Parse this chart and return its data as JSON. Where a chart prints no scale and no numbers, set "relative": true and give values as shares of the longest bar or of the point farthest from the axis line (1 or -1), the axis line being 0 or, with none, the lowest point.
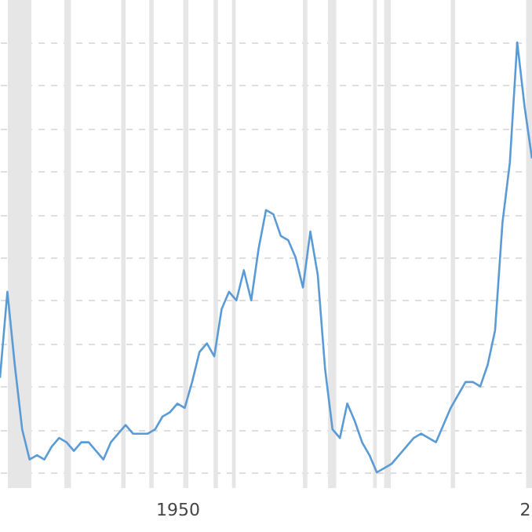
{
  "chart_data": {
    "type": "line",
    "relative": true,
    "grid": "y",
    "line_style": "solid",
    "marker": "none",
    "categories": [
      null,
      null,
      null,
      null,
      null,
      null,
      null,
      null,
      null,
      null,
      null,
      null,
      null,
      null,
      null,
      null,
      null,
      null,
      null,
      null,
      null,
      null,
      null,
      null,
      "1950",
      null,
      null,
      null,
      null,
      null,
      null,
      null,
      null,
      null,
      null,
      null,
      null,
      null,
      null,
      null,
      null,
      null,
      null,
      null,
      null,
      null,
      null,
      null,
      null,
      null,
      null,
      null,
      null,
      null,
      null,
      null,
      null,
      null,
      null,
      null,
      null,
      null,
      null,
      null,
      null,
      null,
      null,
      null,
      null,
      null,
      null,
      "2",
      null
    ],
    "series": [
      {
        "color": "#5b9bd5",
        "values": [
          0.22,
          0.42,
          0.25,
          0.1,
          0.03,
          0.04,
          0.03,
          0.06,
          0.08,
          0.07,
          0.05,
          0.07,
          0.07,
          0.05,
          0.03,
          0.07,
          0.09,
          0.11,
          0.09,
          0.09,
          0.09,
          0.1,
          0.13,
          0.14,
          0.16,
          0.15,
          0.21,
          0.28,
          0.3,
          0.27,
          0.38,
          0.42,
          0.4,
          0.47,
          0.4,
          0.52,
          0.61,
          0.6,
          0.55,
          0.54,
          0.5,
          0.43,
          0.56,
          0.46,
          0.24,
          0.1,
          0.08,
          0.16,
          0.12,
          0.07,
          0.04,
          0,
          0.01,
          0.02,
          0.04,
          0.06,
          0.08,
          0.09,
          0.08,
          0.07,
          0.11,
          0.15,
          0.18,
          0.21,
          0.21,
          0.2,
          0.25,
          0.33,
          0.58,
          0.72,
          1,
          0.85,
          0.73
        ]
      }
    ]
  }
}
